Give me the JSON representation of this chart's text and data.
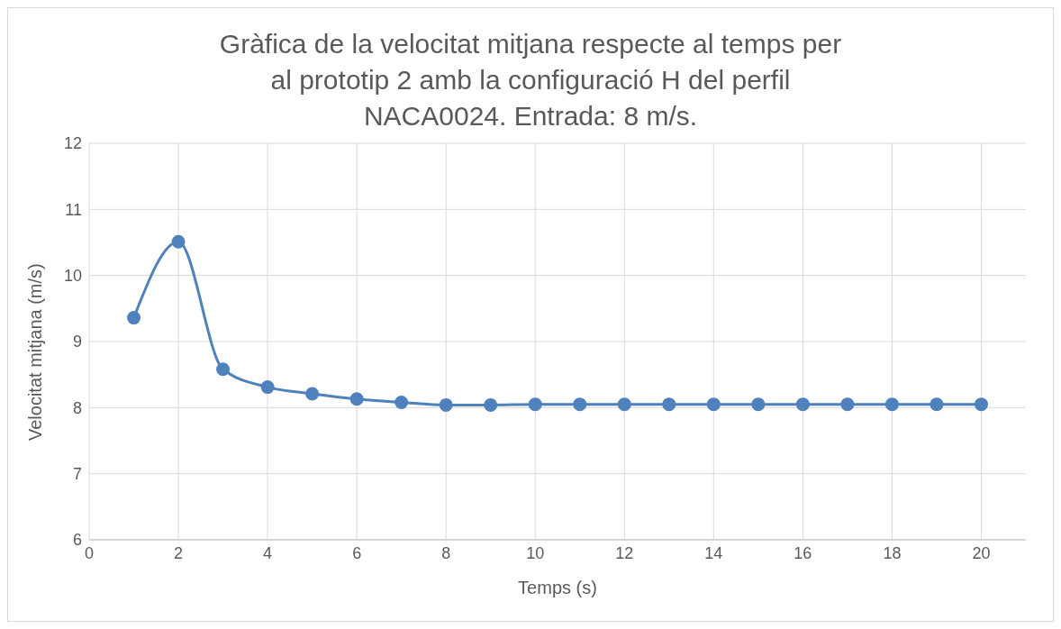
{
  "chart_data": {
    "type": "line",
    "title": "Gràfica de la velocitat mitjana respecte al temps per al prototip 2 amb la configuració H del perfil NACA0024. Entrada: 8 m/s.",
    "xlabel": "Temps (s)",
    "ylabel": "Velocitat mitjana (m/s)",
    "x": [
      1,
      2,
      3,
      4,
      5,
      6,
      7,
      8,
      9,
      10,
      11,
      12,
      13,
      14,
      15,
      16,
      17,
      18,
      19,
      20
    ],
    "series": [
      {
        "color": "#4f81bd",
        "values": [
          9.36,
          10.51,
          8.58,
          8.31,
          8.21,
          8.13,
          8.08,
          8.04,
          8.04,
          8.05,
          8.05,
          8.05,
          8.05,
          8.05,
          8.05,
          8.05,
          8.05,
          8.05,
          8.05,
          8.05
        ]
      }
    ],
    "xlim": [
      0,
      21
    ],
    "xticks": [
      0,
      2,
      4,
      6,
      8,
      10,
      12,
      14,
      16,
      18,
      20
    ],
    "ylim": [
      6,
      12
    ],
    "yticks": [
      6,
      7,
      8,
      9,
      10,
      11,
      12
    ],
    "grid": true,
    "legend": false,
    "marker": "circle",
    "line_style": "solid"
  }
}
